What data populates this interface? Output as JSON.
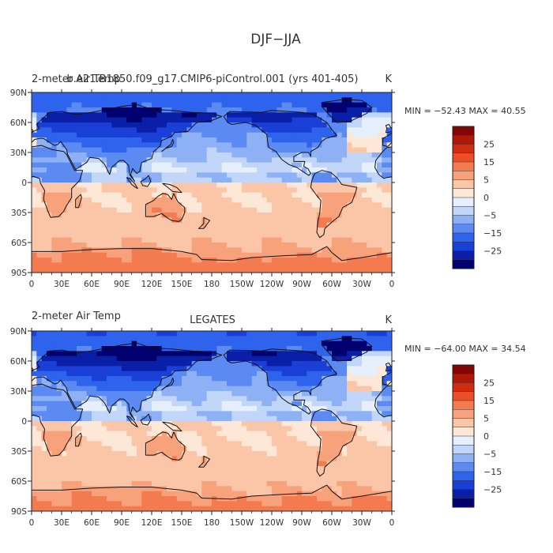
{
  "figure": {
    "title": "DJF−JJA"
  },
  "colors": {
    "palette": [
      "#00006e",
      "#0a1fa8",
      "#1a3fd6",
      "#2e63ee",
      "#5a8af2",
      "#8eb0f5",
      "#c2d6fa",
      "#e6f0fc",
      "#fde7d6",
      "#fbc6a8",
      "#f8a27c",
      "#f47a50",
      "#ec4f28",
      "#d22c10",
      "#b11706",
      "#820404"
    ]
  },
  "chart_data": [
    {
      "type": "heatmap",
      "subtitle": "b.e21.B1850.f09_g17.CMIP6-piControl.001 (yrs 401-405)",
      "left_label": "2-meter Air Temp",
      "units": "K",
      "stats": "MIN = −52.43  MAX =  40.55",
      "colorbar": {
        "labels": [
          "25",
          "15",
          "5",
          "0",
          "−5",
          "−15",
          "−25"
        ],
        "levels": [
          -30,
          -25,
          -20,
          -15,
          -10,
          -5,
          -2,
          0,
          2,
          5,
          10,
          15,
          20,
          25,
          30,
          35
        ]
      },
      "x_ticks": [
        "0",
        "30E",
        "60E",
        "90E",
        "120E",
        "150E",
        "180",
        "150W",
        "120W",
        "90W",
        "60W",
        "30W",
        "0"
      ],
      "y_ticks": [
        "90N",
        "60N",
        "30N",
        "0",
        "30S",
        "60S",
        "90S"
      ],
      "xlim": [
        0,
        360
      ],
      "ylim": [
        -90,
        90
      ],
      "field_model": {
        "n_gain": 1.0,
        "s_gain": 1.0
      }
    },
    {
      "type": "heatmap",
      "subtitle": "LEGATES",
      "left_label": "2-meter Air Temp",
      "units": "K",
      "stats": "MIN = −64.00  MAX =  34.54",
      "colorbar": {
        "labels": [
          "25",
          "15",
          "5",
          "0",
          "−5",
          "−15",
          "−25"
        ],
        "levels": [
          -30,
          -25,
          -20,
          -15,
          -10,
          -5,
          -2,
          0,
          2,
          5,
          10,
          15,
          20,
          25,
          30,
          35
        ]
      },
      "x_ticks": [
        "0",
        "30E",
        "60E",
        "90E",
        "120E",
        "150E",
        "180",
        "150W",
        "120W",
        "90W",
        "60W",
        "30W",
        "0"
      ],
      "y_ticks": [
        "90N",
        "60N",
        "30N",
        "0",
        "30S",
        "60S",
        "90S"
      ],
      "xlim": [
        0,
        360
      ],
      "ylim": [
        -90,
        90
      ],
      "field_model": {
        "n_gain": 1.08,
        "s_gain": 0.93
      }
    }
  ]
}
